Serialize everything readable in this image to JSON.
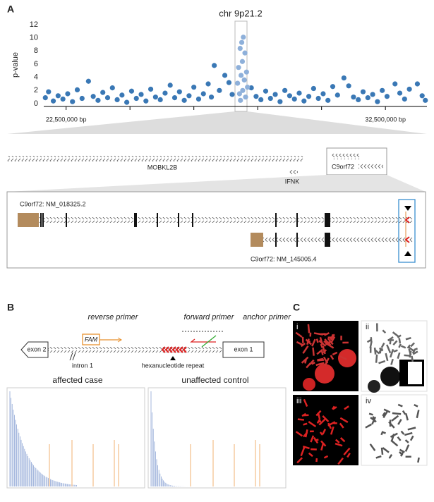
{
  "panels": [
    "A",
    "B",
    "C"
  ],
  "chart_data": {
    "type": "scatter",
    "title": "chr 9p21.2",
    "y_label": "p-value",
    "xlim": [
      21800000,
      33800000
    ],
    "ylim": [
      0,
      12
    ],
    "xticks": [
      {
        "value": 22500000,
        "label": "22,500,000 bp"
      },
      {
        "value": 32500000,
        "label": "32,500,000 bp"
      }
    ],
    "xminorticks": [
      24500000,
      26500000,
      28500000,
      30500000
    ],
    "yticks": [
      0,
      2,
      4,
      6,
      8,
      10,
      12
    ],
    "series": [
      {
        "color": "#3a78b5",
        "x": [
          21850000,
          21950000,
          22100000,
          22250000,
          22400000,
          22550000,
          22700000,
          22850000,
          23000000,
          23200000,
          23350000,
          23500000,
          23650000,
          23800000,
          23950000,
          24100000,
          24250000,
          24400000,
          24550000,
          24700000,
          24850000,
          25000000,
          25150000,
          25300000,
          25450000,
          25600000,
          25760000,
          25900000,
          26050000,
          26200000,
          26350000,
          26500000,
          26650000,
          26800000,
          26950000,
          27050000,
          27140000,
          27300000,
          27470000,
          27600000,
          27700000,
          28300000,
          28450000,
          28600000,
          28750000,
          28900000,
          29050000,
          29200000,
          29350000,
          29500000,
          29650000,
          29800000,
          29950000,
          30100000,
          30250000,
          30400000,
          30550000,
          30700000,
          30850000,
          31000000,
          31200000,
          31350000,
          31500000,
          31650000,
          31800000,
          31950000,
          32100000,
          32250000,
          32400000,
          32550000,
          32800000,
          32950000,
          33100000,
          33250000,
          33500000,
          33650000,
          33750000
        ],
        "values": [
          0.9,
          1.8,
          0.4,
          1.2,
          0.7,
          1.5,
          0.3,
          2.1,
          0.8,
          3.4,
          1.1,
          0.5,
          1.7,
          0.9,
          2.4,
          0.6,
          1.3,
          0.2,
          1.9,
          0.8,
          1.4,
          0.4,
          2.2,
          1.0,
          0.6,
          1.6,
          2.8,
          0.9,
          1.8,
          0.5,
          1.2,
          2.5,
          0.7,
          1.5,
          3.0,
          1.0,
          5.8,
          2.0,
          4.3,
          3.2,
          1.4,
          2.4,
          1.1,
          0.6,
          1.9,
          0.8,
          1.4,
          0.3,
          2.0,
          1.2,
          0.7,
          1.6,
          0.4,
          1.1,
          2.3,
          0.8,
          1.5,
          0.5,
          2.6,
          1.3,
          3.9,
          2.7,
          1.0,
          0.6,
          1.8,
          0.9,
          1.4,
          0.3,
          2.0,
          1.1,
          3.0,
          1.6,
          0.7,
          2.2,
          3.0,
          1.2,
          0.5
        ]
      },
      {
        "color": "#8eb0da",
        "x": [
          28050000,
          28000000,
          27950000,
          28100000,
          28020000,
          27900000,
          28150000,
          27980000,
          28080000,
          27870000,
          28180000,
          28030000,
          27930000,
          28120000,
          27960000
        ],
        "values": [
          10.1,
          9.3,
          8.4,
          7.7,
          6.4,
          5.5,
          4.8,
          4.3,
          3.6,
          3.1,
          2.5,
          2.0,
          1.5,
          1.0,
          0.5
        ]
      }
    ]
  },
  "genes": {
    "track": [
      "MOBKL2B",
      "IFNK",
      "C9orf72"
    ],
    "transcripts": [
      "C9orf72: NM_018325.2",
      "C9orf72: NM_145005.4"
    ]
  },
  "assay": {
    "primers": [
      "reverse primer",
      "forward primer",
      "anchor primer"
    ],
    "dye": "FAM",
    "exons": [
      "exon 2",
      "exon 1"
    ],
    "intron": "intron 1",
    "repeat": "hexanucleotide repeat",
    "traces": [
      "affected case",
      "unaffected control"
    ]
  },
  "images": [
    "i",
    "ii",
    "iii",
    "iv"
  ]
}
